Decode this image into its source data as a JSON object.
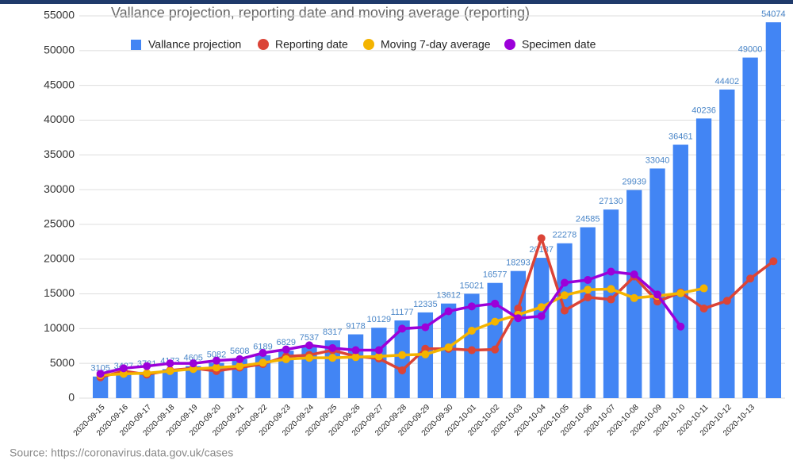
{
  "chart_data": {
    "type": "bar_line",
    "title": "Vallance projection, reporting date and moving average (reporting)",
    "source": "Source: https://coronavirus.data.gov.uk/cases",
    "categories": [
      "2020-09-15",
      "2020-09-16",
      "2020-09-17",
      "2020-09-18",
      "2020-09-19",
      "2020-09-20",
      "2020-09-21",
      "2020-09-22",
      "2020-09-23",
      "2020-09-24",
      "2020-09-25",
      "2020-09-26",
      "2020-09-27",
      "2020-09-28",
      "2020-09-29",
      "2020-09-30",
      "2020-10-01",
      "2020-10-02",
      "2020-10-03",
      "2020-10-04",
      "2020-10-05",
      "2020-10-06",
      "2020-10-07",
      "2020-10-08",
      "2020-10-09",
      "2020-10-10",
      "2020-10-11",
      "2020-10-12",
      "2020-10-13",
      null
    ],
    "series": [
      {
        "name": "Vallance projection",
        "color": "#4285f4",
        "kind": "bar",
        "values": [
          3105,
          3427,
          3781,
          4173,
          4605,
          5082,
          5608,
          6189,
          6829,
          7537,
          8317,
          9178,
          10129,
          11177,
          12335,
          13612,
          15021,
          16577,
          18293,
          20187,
          22278,
          24585,
          27130,
          29939,
          33040,
          36461,
          40236,
          44402,
          49000,
          54074
        ]
      },
      {
        "name": "Reporting date",
        "color": "#db4437",
        "kind": "line",
        "values": [
          3000,
          3900,
          3400,
          4000,
          4300,
          3900,
          4400,
          4900,
          6000,
          6200,
          6900,
          6000,
          5700,
          4000,
          7100,
          7100,
          6900,
          7000,
          12900,
          23000,
          12600,
          14500,
          14200,
          17500,
          13900,
          15200,
          12900,
          14000,
          17200,
          19700
        ]
      },
      {
        "name": "Moving 7-day average",
        "color": "#f4b400",
        "kind": "line",
        "values": [
          3300,
          3500,
          3600,
          3900,
          4200,
          4400,
          4600,
          5100,
          5600,
          5800,
          5800,
          5900,
          6000,
          6200,
          6300,
          7300,
          9700,
          11000,
          12000,
          13100,
          14800,
          15600,
          15700,
          14400,
          14700,
          15100,
          15800,
          null,
          null,
          null
        ]
      },
      {
        "name": "Specimen date",
        "color": "#9b00d9",
        "kind": "line",
        "values": [
          3500,
          4300,
          4600,
          5000,
          5000,
          5400,
          5600,
          6500,
          7000,
          7600,
          7200,
          6900,
          6900,
          10000,
          10200,
          12500,
          13200,
          13600,
          11500,
          11800,
          16600,
          17000,
          18200,
          17800,
          14900,
          10300,
          null,
          null,
          null,
          null
        ]
      }
    ],
    "ylim": [
      0,
      55000
    ],
    "yticks": [
      0,
      5000,
      10000,
      15000,
      20000,
      25000,
      30000,
      35000,
      40000,
      45000,
      50000,
      55000
    ],
    "grid": true
  }
}
